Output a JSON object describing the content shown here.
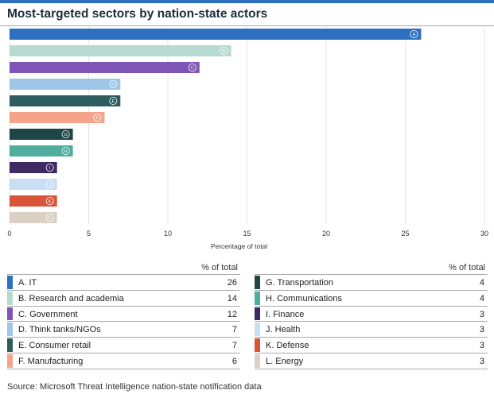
{
  "title": "Most-targeted sectors by nation-state actors",
  "source": "Source: Microsoft Threat Intelligence nation-state notification data",
  "table": {
    "header": "% of total",
    "left": [
      {
        "letter": "A.",
        "name": "IT",
        "value": "26",
        "color": "#2e6fc0"
      },
      {
        "letter": "B.",
        "name": "Research and academia",
        "value": "14",
        "color": "#b6dad0"
      },
      {
        "letter": "C.",
        "name": "Government",
        "value": "12",
        "color": "#7f56b8"
      },
      {
        "letter": "D.",
        "name": "Think tanks/NGOs",
        "value": "7",
        "color": "#9dc6e8"
      },
      {
        "letter": "E.",
        "name": "Consumer retail",
        "value": "7",
        "color": "#2e5d5f"
      },
      {
        "letter": "F.",
        "name": "Manufacturing",
        "value": "6",
        "color": "#f5a48a"
      }
    ],
    "right": [
      {
        "letter": "G.",
        "name": "Transportation",
        "value": "4",
        "color": "#1d4746"
      },
      {
        "letter": "H.",
        "name": "Communications",
        "value": "4",
        "color": "#4fae9e"
      },
      {
        "letter": "I.",
        "name": "Finance",
        "value": "3",
        "color": "#3f2b63"
      },
      {
        "letter": "J.",
        "name": "Health",
        "value": "3",
        "color": "#c8def4"
      },
      {
        "letter": "K.",
        "name": "Defense",
        "value": "3",
        "color": "#d9553a"
      },
      {
        "letter": "L.",
        "name": "Energy",
        "value": "3",
        "color": "#dbd0c4"
      }
    ]
  },
  "chart_data": {
    "type": "bar",
    "orientation": "horizontal",
    "categories": [
      "A",
      "B",
      "C",
      "D",
      "E",
      "F",
      "G",
      "H",
      "I",
      "J",
      "K",
      "L"
    ],
    "values": [
      26,
      14,
      12,
      7,
      7,
      6,
      4,
      4,
      3,
      3,
      3,
      3
    ],
    "colors": [
      "#2e6fc0",
      "#b6dad0",
      "#7f56b8",
      "#9dc6e8",
      "#2e5d5f",
      "#f5a48a",
      "#1d4746",
      "#4fae9e",
      "#3f2b63",
      "#c8def4",
      "#d9553a",
      "#dbd0c4"
    ],
    "title": "Most-targeted sectors by nation-state actors",
    "xlabel": "Percentage of total",
    "ylabel": "",
    "xlim": [
      0,
      30
    ],
    "xticks": [
      0,
      5,
      10,
      15,
      20,
      25,
      30
    ],
    "grid": true
  }
}
